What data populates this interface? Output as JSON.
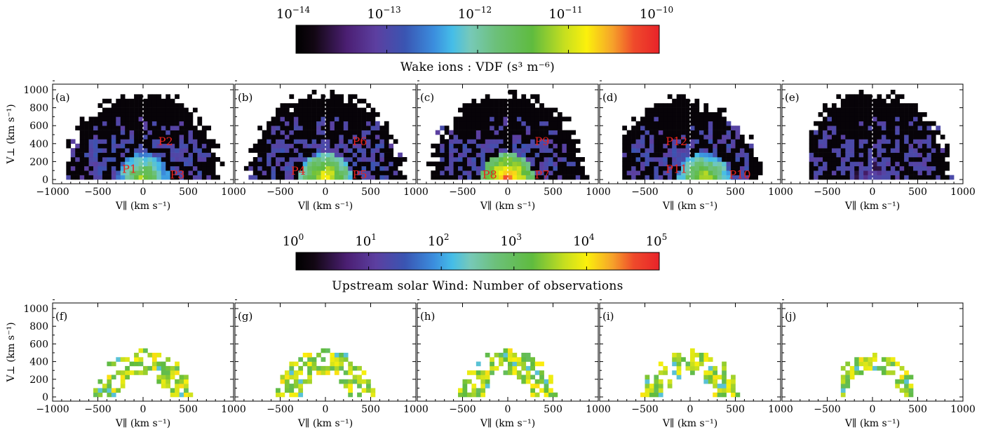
{
  "chart_data": [
    {
      "type": "heatmap",
      "title": "",
      "colorbar": {
        "label": "Wake ions : VDF (s³ m⁻⁶)",
        "scale": "log",
        "range": [
          1e-14,
          1e-10
        ],
        "tick_labels": [
          [
            "10",
            "−14"
          ],
          [
            "10",
            "−13"
          ],
          [
            "10",
            "−12"
          ],
          [
            "10",
            "−11"
          ],
          [
            "10",
            "−10"
          ]
        ]
      },
      "xlabel": "V∥ (km s⁻¹)",
      "ylabel": "V⊥ (km s⁻¹)",
      "xlim": [
        -1000,
        1000
      ],
      "ylim": [
        0,
        1100
      ],
      "x_ticks": [
        "−1000",
        "−500",
        "0",
        "500",
        "1000"
      ],
      "y_ticks": [
        "0",
        "200",
        "400",
        "600",
        "800",
        "1000"
      ],
      "panels": [
        {
          "label": "(a)",
          "populations": [
            {
              "name": "P1",
              "vpar": -150,
              "vperp": 120
            },
            {
              "name": "P2",
              "vpar": 250,
              "vperp": 430
            },
            {
              "name": "P3",
              "vpar": 380,
              "vperp": 60
            }
          ]
        },
        {
          "label": "(b)",
          "populations": [
            {
              "name": "P4",
              "vpar": -300,
              "vperp": 100
            },
            {
              "name": "P6",
              "vpar": 380,
              "vperp": 430
            },
            {
              "name": "P5",
              "vpar": 380,
              "vperp": 60
            }
          ]
        },
        {
          "label": "(c)",
          "populations": [
            {
              "name": "P8",
              "vpar": -200,
              "vperp": 60
            },
            {
              "name": "P9",
              "vpar": 380,
              "vperp": 430
            },
            {
              "name": "P7",
              "vpar": 380,
              "vperp": 60
            }
          ]
        },
        {
          "label": "(d)",
          "populations": [
            {
              "name": "P12",
              "vpar": -150,
              "vperp": 430
            },
            {
              "name": "P11",
              "vpar": -150,
              "vperp": 120
            },
            {
              "name": "P10",
              "vpar": 550,
              "vperp": 60
            }
          ]
        },
        {
          "label": "(e)",
          "populations": []
        }
      ]
    },
    {
      "type": "heatmap",
      "title": "",
      "colorbar": {
        "label": "Upstream solar Wind: Number of observations",
        "scale": "log",
        "range": [
          1,
          100000
        ],
        "tick_labels": [
          [
            "10",
            "0"
          ],
          [
            "10",
            "1"
          ],
          [
            "10",
            "2"
          ],
          [
            "10",
            "3"
          ],
          [
            "10",
            "4"
          ],
          [
            "10",
            "5"
          ]
        ]
      },
      "xlabel": "V∥ (km s⁻¹)",
      "ylabel": "V⊥ (km s⁻¹)",
      "xlim": [
        -1000,
        1000
      ],
      "ylim": [
        0,
        1100
      ],
      "x_ticks": [
        "−1000",
        "−500",
        "0",
        "500",
        "1000"
      ],
      "y_ticks": [
        "0",
        "200",
        "400",
        "600",
        "800",
        "1000"
      ],
      "panels": [
        {
          "label": "(f)"
        },
        {
          "label": "(g)"
        },
        {
          "label": "(h)"
        },
        {
          "label": "(i)"
        },
        {
          "label": "(j)"
        }
      ]
    }
  ]
}
